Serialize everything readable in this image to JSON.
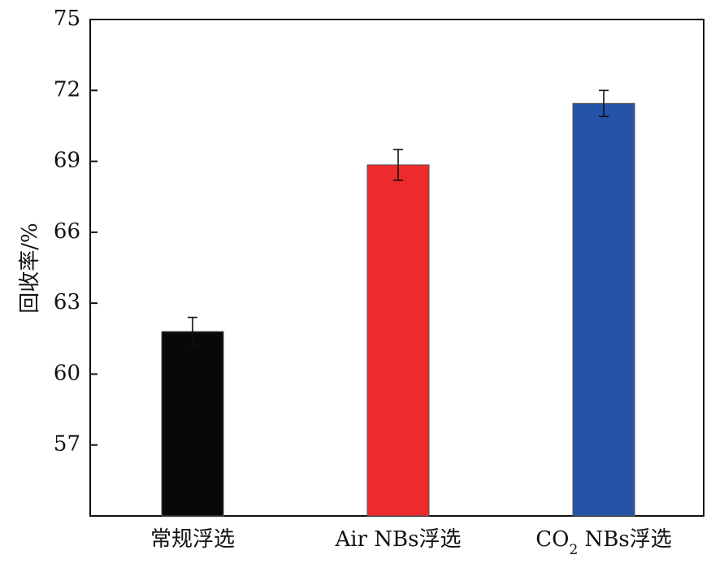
{
  "chart_data": {
    "type": "bar",
    "categories": [
      "常规浮选",
      "Air NBs浮选",
      "CO2 NBs浮选"
    ],
    "category_labels": [
      {
        "parts": [
          {
            "t": "常规浮选",
            "sub": false
          }
        ]
      },
      {
        "parts": [
          {
            "t": "Air NBs浮选",
            "sub": false
          }
        ]
      },
      {
        "parts": [
          {
            "t": "CO",
            "sub": false
          },
          {
            "t": "2",
            "sub": true
          },
          {
            "t": " NBs浮选",
            "sub": false
          }
        ]
      }
    ],
    "values": [
      61.8,
      68.85,
      71.45
    ],
    "errors": [
      0.6,
      0.65,
      0.55
    ],
    "colors": [
      "#0a0806",
      "#ee2a2d",
      "#2453a7"
    ],
    "xlabel": "",
    "ylabel": "回收率/%",
    "ylim": [
      54,
      75
    ],
    "yticks": [
      57,
      60,
      63,
      66,
      69,
      72,
      75
    ],
    "grid": false,
    "legend": "none"
  }
}
